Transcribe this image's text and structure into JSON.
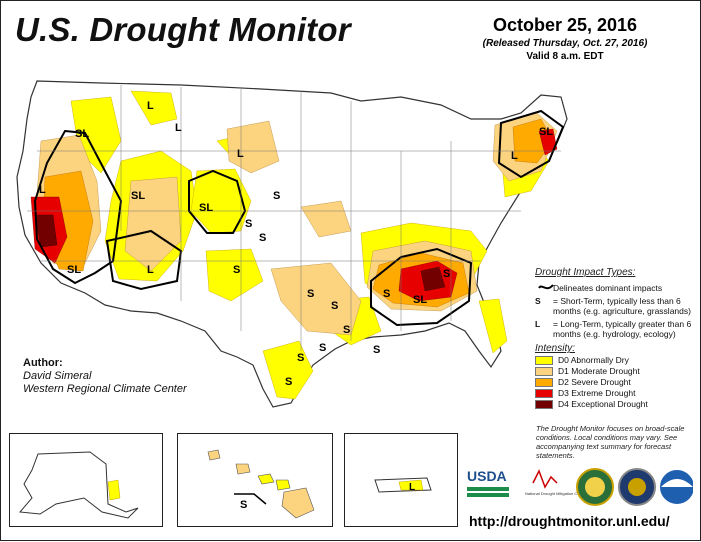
{
  "header": {
    "title": "U.S. Drought Monitor",
    "date": "October 25, 2016",
    "released": "(Released Thursday, Oct. 27, 2016)",
    "valid": "Valid 8 a.m. EDT"
  },
  "author": {
    "heading": "Author:",
    "name": "David Simeral",
    "org": "Western Regional Climate Center"
  },
  "legend": {
    "impact_heading": "Drought Impact Types:",
    "delineates": "Delineates dominant impacts",
    "short_term_symbol": "S",
    "short_term": "= Short-Term, typically less than 6 months (e.g. agriculture, grasslands)",
    "long_term_symbol": "L",
    "long_term": "= Long-Term, typically greater than 6 months (e.g. hydrology, ecology)",
    "intensity_heading": "Intensity:",
    "categories": [
      {
        "label": "D0 Abnormally Dry",
        "color": "#ffff00"
      },
      {
        "label": "D1 Moderate Drought",
        "color": "#fcd37f"
      },
      {
        "label": "D2 Severe Drought",
        "color": "#ffaa00"
      },
      {
        "label": "D3 Extreme Drought",
        "color": "#e60000"
      },
      {
        "label": "D4 Exceptional Drought",
        "color": "#730000"
      }
    ]
  },
  "note": "The Drought Monitor focuses on broad-scale conditions. Local conditions may vary. See accompanying text summary for forecast statements.",
  "map_labels": {
    "west_sl": "SL",
    "ca_l": "L",
    "ca_sl": "SL",
    "nv_sl": "SL",
    "ut_l": "L",
    "mt_l": "L",
    "mt_l2": "L",
    "wy_sl": "SL",
    "dak_l": "L",
    "ne_s": "S",
    "co_s": "S",
    "co_s2": "S",
    "nm_s": "S",
    "tx_s": "S",
    "ok_s": "S",
    "tx_s2": "S",
    "tx_s3": "S",
    "tx_s4": "S",
    "gulf_s": "S",
    "la_s": "S",
    "se_s": "S",
    "se_sl": "SL",
    "se_s2": "S",
    "ne_sl": "SL",
    "ne_l": "L",
    "hi_s": "S",
    "pr_l": "L"
  },
  "logos": {
    "usda": "USDA",
    "ndmc": "National Drought Mitigation Center"
  },
  "url": "http://droughtmonitor.unl.edu/"
}
